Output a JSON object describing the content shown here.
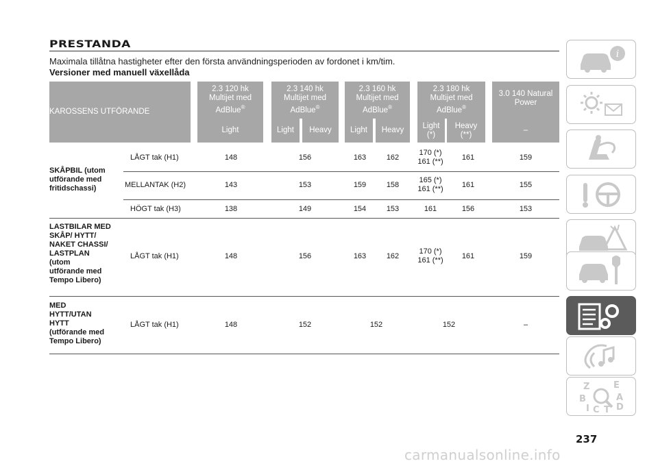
{
  "header": {
    "title": "PRESTANDA",
    "subtitle": "Maximala tillåtna hastigheter efter den första användningsperioden av fordonet i km/tim.",
    "section": "Versioner med manuell växellåda"
  },
  "table": {
    "header_label": "KAROSSENS UTFÖRANDE",
    "engines": [
      {
        "line1": "2.3 120 hk",
        "line2": "Multijet med",
        "line3": "AdBlue",
        "mark": "®"
      },
      {
        "line1": "2.3 140 hk",
        "line2": "Multijet med",
        "line3": "AdBlue",
        "mark": "®"
      },
      {
        "line1": "2.3 160 hk",
        "line2": "Multijet med",
        "line3": "AdBlue",
        "mark": "®"
      },
      {
        "line1": "2.3 180 hk",
        "line2": "Multijet med",
        "line3": "AdBlue",
        "mark": "®"
      },
      {
        "line1": "3.0 140 Natural",
        "line2": "Power"
      }
    ],
    "variants": [
      "Light",
      "Light",
      "Heavy",
      "Light",
      "Heavy",
      "Light\n(*)",
      "Heavy\n(**)",
      "–"
    ],
    "groups": [
      {
        "label": [
          "SKÅPBIL (utom",
          "utförande med",
          "fritidschassi)"
        ],
        "rows": [
          {
            "roof": "LÅGT tak (H1)",
            "values": [
              "148",
              "156",
              "163",
              "162",
              "170 (*)\n161 (**)",
              "161",
              "159"
            ]
          },
          {
            "roof": "MELLANTAK (H2)",
            "values": [
              "143",
              "153",
              "159",
              "158",
              "165 (*)\n161 (**)",
              "161",
              "155"
            ]
          },
          {
            "roof": "HÖGT tak (H3)",
            "values": [
              "138",
              "149",
              "154",
              "153",
              "161",
              "156",
              "153"
            ]
          }
        ]
      },
      {
        "label": [
          "LASTBILAR MED",
          "SKÅP/ HYTT/",
          "NAKET CHASSI/",
          "LASTPLAN",
          "(utom",
          "utförande med",
          "Tempo Libero)"
        ],
        "rows": [
          {
            "roof": "LÅGT tak (H1)",
            "values": [
              "148",
              "156",
              "163",
              "162",
              "170 (*)\n161 (**)",
              "161",
              "159"
            ]
          }
        ]
      },
      {
        "label": [
          "MED",
          "HYTT/UTAN",
          "HYTT",
          "(utförande med",
          "Tempo Libero)"
        ],
        "rows": [
          {
            "roof": "LÅGT tak (H1)",
            "values": [
              "148",
              "152",
              "152",
              "152",
              "–"
            ]
          }
        ]
      }
    ]
  },
  "sidebar": {
    "tabs": [
      {
        "icon": "car-info-icon"
      },
      {
        "icon": "warning-lights-icon"
      },
      {
        "icon": "airbag-seat-icon"
      },
      {
        "icon": "steering-key-icon"
      },
      {
        "icon": "breakdown-icon"
      },
      {
        "icon": "car-service-icon"
      },
      {
        "icon": "technical-data-icon",
        "active": true
      },
      {
        "icon": "multimedia-icon"
      },
      {
        "icon": "index-icon"
      }
    ],
    "index_letters": [
      "Z",
      "E",
      "B",
      "A",
      "I",
      "C",
      "T",
      "D"
    ]
  },
  "page_number": "237",
  "watermark": "carmanualsonline.info"
}
